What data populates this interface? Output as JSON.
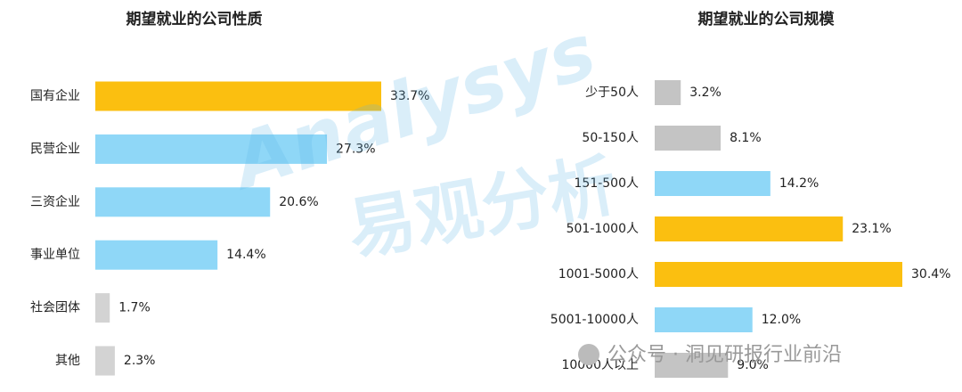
{
  "chart_data": [
    {
      "type": "bar",
      "orientation": "horizontal",
      "title": "期望就业的公司性质",
      "categories": [
        "国有企业",
        "民营企业",
        "三资企业",
        "事业单位",
        "社会团体",
        "其他"
      ],
      "values": [
        33.7,
        27.3,
        20.6,
        14.4,
        1.7,
        2.3
      ],
      "value_labels": [
        "33.7%",
        "27.3%",
        "20.6%",
        "14.4%",
        "1.7%",
        "2.3%"
      ],
      "colors": [
        "#fbbf10",
        "#8fd7f7",
        "#8fd7f7",
        "#8fd7f7",
        "#d3d3d3",
        "#d3d3d3"
      ]
    },
    {
      "type": "bar",
      "orientation": "horizontal",
      "title": "期望就业的公司规模",
      "categories": [
        "少于50人",
        "50-150人",
        "151-500人",
        "501-1000人",
        "1001-5000人",
        "5001-10000人",
        "10000人以上"
      ],
      "values": [
        3.2,
        8.1,
        14.2,
        23.1,
        30.4,
        12.0,
        9.0
      ],
      "value_labels": [
        "3.2%",
        "8.1%",
        "14.2%",
        "23.1%",
        "30.4%",
        "12.0%",
        "9.0%"
      ],
      "colors": [
        "#c4c4c4",
        "#c4c4c4",
        "#8fd7f7",
        "#fbbf10",
        "#fbbf10",
        "#8fd7f7",
        "#c4c4c4"
      ]
    }
  ],
  "watermark": {
    "brand": "Analysys",
    "brand_cn": "易观分析",
    "wechat": "公众号 · 洞见研报行业前沿"
  }
}
